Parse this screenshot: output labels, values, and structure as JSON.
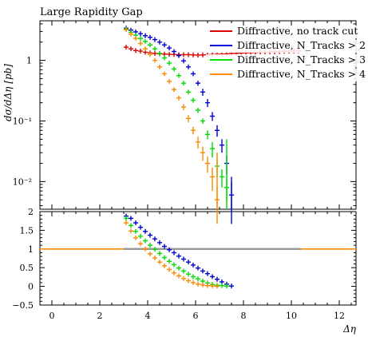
{
  "chart_data": {
    "type": "scatter",
    "title": "Large Rapidity Gap",
    "xlabel": "Δη",
    "ylabel": "dσ/dΔη [pb]",
    "ratio_ylabel": "",
    "xlim": [
      -0.5,
      12.7
    ],
    "ylim": [
      0.0035,
      4.5
    ],
    "yscale": "log",
    "ratio_ylim": [
      -0.5,
      2.0
    ],
    "x_ticks": [
      "0",
      "2",
      "4",
      "6",
      "8",
      "10",
      "12"
    ],
    "y_ticks": [
      "1",
      "10⁻¹",
      "10⁻²"
    ],
    "ratio_ticks": [
      "2",
      "1.5",
      "1",
      "0.5",
      "0",
      "−0.5"
    ],
    "legend_position": "top-right",
    "series": [
      {
        "name": "Diffractive, no track cut",
        "color": "#dd0000",
        "x": [
          3.1,
          3.3,
          3.5,
          3.7,
          3.9,
          4.1,
          4.3,
          4.5,
          4.7,
          4.9,
          5.1,
          5.3,
          5.5,
          5.7,
          5.9,
          6.1,
          6.3,
          6.5,
          6.7,
          6.9,
          7.1,
          7.3,
          7.5,
          7.7,
          7.9,
          8.1,
          8.3,
          8.5,
          8.7,
          8.9,
          9.1,
          9.3,
          9.5,
          9.7,
          9.9,
          10.1,
          10.3
        ],
        "y": [
          1.65,
          1.55,
          1.45,
          1.42,
          1.36,
          1.33,
          1.3,
          1.28,
          1.27,
          1.26,
          1.25,
          1.24,
          1.24,
          1.24,
          1.23,
          1.22,
          1.23,
          1.24,
          1.25,
          1.26,
          1.27,
          1.28,
          1.3,
          1.31,
          1.32,
          1.33,
          1.34,
          1.35,
          1.36,
          1.37,
          1.38,
          1.39,
          1.4,
          1.41,
          1.42,
          1.43,
          1.44
        ],
        "yerr": [
          0.02,
          0.02,
          0.02,
          0.02,
          0.02,
          0.02,
          0.02,
          0.02,
          0.02,
          0.02,
          0.02,
          0.02,
          0.02,
          0.02,
          0.02,
          0.02,
          0.02,
          0.02,
          0.02,
          0.02,
          0.02,
          0.02,
          0.02,
          0.02,
          0.02,
          0.02,
          0.02,
          0.02,
          0.02,
          0.02,
          0.02,
          0.02,
          0.02,
          0.02,
          0.02,
          0.02,
          0.02
        ]
      },
      {
        "name": "Diffractive, N_Tracks > 2",
        "color": "#0000dd",
        "x": [
          3.1,
          3.3,
          3.5,
          3.7,
          3.9,
          4.1,
          4.3,
          4.5,
          4.7,
          4.9,
          5.1,
          5.3,
          5.5,
          5.7,
          5.9,
          6.1,
          6.3,
          6.5,
          6.7,
          6.9,
          7.1,
          7.3,
          7.5
        ],
        "y": [
          3.4,
          3.15,
          2.95,
          2.75,
          2.55,
          2.4,
          2.2,
          2.0,
          1.8,
          1.6,
          1.4,
          1.2,
          0.98,
          0.78,
          0.6,
          0.42,
          0.3,
          0.2,
          0.12,
          0.07,
          0.04,
          0.02,
          0.006
        ],
        "yerr": [
          0.05,
          0.05,
          0.05,
          0.05,
          0.05,
          0.05,
          0.05,
          0.05,
          0.05,
          0.05,
          0.05,
          0.05,
          0.05,
          0.05,
          0.05,
          0.04,
          0.04,
          0.03,
          0.02,
          0.015,
          0.01,
          0.007,
          0.004
        ],
        "ratio": [
          1.88,
          1.82,
          1.7,
          1.58,
          1.47,
          1.37,
          1.27,
          1.17,
          1.07,
          0.98,
          0.9,
          0.81,
          0.73,
          0.65,
          0.57,
          0.49,
          0.41,
          0.34,
          0.26,
          0.19,
          0.12,
          0.06,
          0.01
        ]
      },
      {
        "name": "Diffractive, N_Tracks > 3",
        "color": "#00dd00",
        "x": [
          3.1,
          3.3,
          3.5,
          3.7,
          3.9,
          4.1,
          4.3,
          4.5,
          4.7,
          4.9,
          5.1,
          5.3,
          5.5,
          5.7,
          5.9,
          6.1,
          6.3,
          6.5,
          6.7,
          6.9,
          7.1,
          7.3
        ],
        "y": [
          3.3,
          2.9,
          2.6,
          2.3,
          2.05,
          1.8,
          1.55,
          1.3,
          1.1,
          0.9,
          0.72,
          0.56,
          0.42,
          0.3,
          0.22,
          0.15,
          0.1,
          0.06,
          0.035,
          0.018,
          0.012,
          0.008
        ],
        "yerr": [
          0.05,
          0.05,
          0.05,
          0.05,
          0.05,
          0.05,
          0.05,
          0.05,
          0.04,
          0.04,
          0.03,
          0.03,
          0.03,
          0.02,
          0.02,
          0.015,
          0.01,
          0.01,
          0.01,
          0.006,
          0.004,
          0.003
        ],
        "ratio": [
          1.82,
          1.63,
          1.47,
          1.34,
          1.22,
          1.1,
          0.99,
          0.88,
          0.77,
          0.67,
          0.58,
          0.49,
          0.41,
          0.33,
          0.26,
          0.2,
          0.14,
          0.09,
          0.05,
          0.03,
          0.02,
          0.01
        ]
      },
      {
        "name": "Diffractive, N_Tracks > 4",
        "color": "#ff8800",
        "x": [
          3.1,
          3.3,
          3.5,
          3.7,
          3.9,
          4.1,
          4.3,
          4.5,
          4.7,
          4.9,
          5.1,
          5.3,
          5.5,
          5.7,
          5.9,
          6.1,
          6.3,
          6.5,
          6.7,
          6.9
        ],
        "y": [
          3.2,
          2.7,
          2.3,
          1.9,
          1.55,
          1.25,
          1.0,
          0.78,
          0.6,
          0.45,
          0.33,
          0.24,
          0.17,
          0.11,
          0.07,
          0.045,
          0.03,
          0.02,
          0.012,
          0.005
        ],
        "yerr": [
          0.05,
          0.05,
          0.05,
          0.05,
          0.04,
          0.04,
          0.04,
          0.03,
          0.03,
          0.03,
          0.02,
          0.02,
          0.02,
          0.015,
          0.01,
          0.01,
          0.008,
          0.006,
          0.005,
          0.003
        ],
        "ratio": [
          1.7,
          1.48,
          1.3,
          1.14,
          1.0,
          0.87,
          0.76,
          0.65,
          0.55,
          0.45,
          0.36,
          0.28,
          0.21,
          0.15,
          0.1,
          0.06,
          0.04,
          0.02,
          0.01,
          0.005
        ]
      }
    ]
  }
}
